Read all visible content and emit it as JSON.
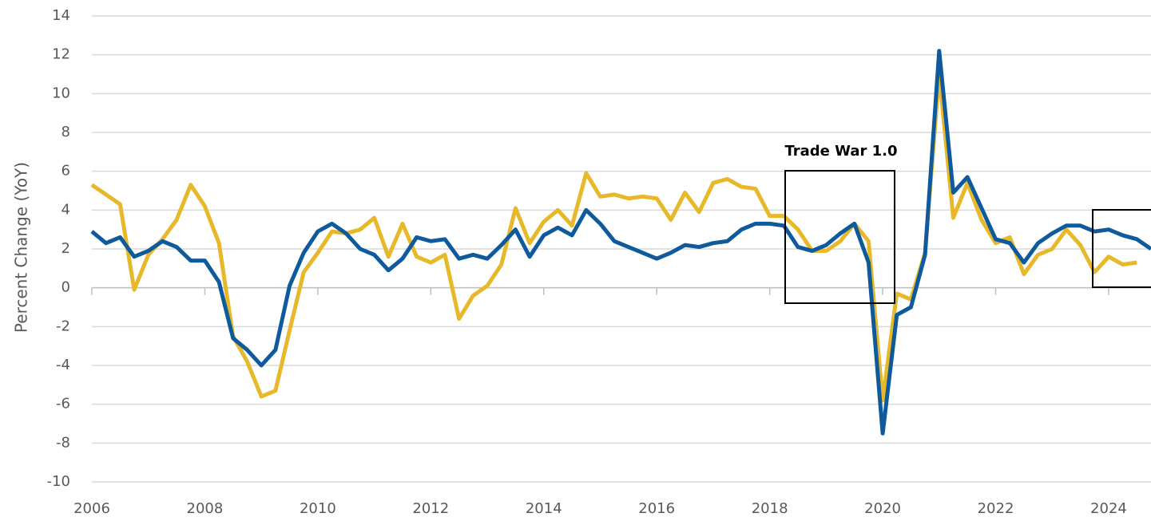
{
  "chart_data": {
    "type": "line",
    "ylabel": "Percent Change (YoY)",
    "annotations": [
      "Trade War 1.0"
    ],
    "x": [
      2006,
      2006.25,
      2006.5,
      2006.75,
      2007,
      2007.25,
      2007.5,
      2007.75,
      2008,
      2008.25,
      2008.5,
      2008.75,
      2009,
      2009.25,
      2009.5,
      2009.75,
      2010,
      2010.25,
      2010.5,
      2010.75,
      2011,
      2011.25,
      2011.5,
      2011.75,
      2012,
      2012.25,
      2012.5,
      2012.75,
      2013,
      2013.25,
      2013.5,
      2013.75,
      2014,
      2014.25,
      2014.5,
      2014.75,
      2015,
      2015.25,
      2015.5,
      2015.75,
      2016,
      2016.25,
      2016.5,
      2016.75,
      2017,
      2017.25,
      2017.5,
      2017.75,
      2018,
      2018.25,
      2018.5,
      2018.75,
      2019,
      2019.25,
      2019.5,
      2019.75,
      2020,
      2020.25,
      2020.5,
      2020.75,
      2021,
      2021.25,
      2021.5,
      2021.75,
      2022,
      2022.25,
      2022.5,
      2022.75,
      2023,
      2023.25,
      2023.5,
      2023.75,
      2024,
      2024.25,
      2024.5,
      2024.75
    ],
    "series": [
      {
        "color": "#e6b82a",
        "values": [
          5.3,
          4.8,
          4.3,
          -0.1,
          1.7,
          2.5,
          3.5,
          5.3,
          4.2,
          2.3,
          -2.5,
          -3.8,
          -5.6,
          -5.3,
          -2.2,
          0.8,
          1.8,
          2.9,
          2.8,
          3.0,
          3.6,
          1.6,
          3.3,
          1.6,
          1.3,
          1.7,
          -1.6,
          -0.4,
          0.1,
          1.2,
          4.1,
          2.3,
          3.4,
          4.0,
          3.2,
          5.9,
          4.7,
          4.8,
          4.6,
          4.7,
          4.6,
          3.5,
          4.9,
          3.9,
          5.4,
          5.6,
          5.2,
          5.1,
          3.7,
          3.7,
          3.0,
          1.9,
          1.9,
          2.4,
          3.3,
          2.4,
          -5.8,
          -0.3,
          -0.6,
          1.8,
          11.0,
          3.6,
          5.4,
          3.5,
          2.3,
          2.6,
          0.7,
          1.7,
          2.0,
          3.0,
          2.2,
          0.8,
          1.6,
          1.2,
          1.3,
          null
        ]
      },
      {
        "color": "#0f5a9c",
        "values": [
          2.9,
          2.3,
          2.6,
          1.6,
          1.9,
          2.4,
          2.1,
          1.4,
          1.4,
          0.3,
          -2.6,
          -3.2,
          -4.0,
          -3.2,
          0.1,
          1.8,
          2.9,
          3.3,
          2.8,
          2.0,
          1.7,
          0.9,
          1.5,
          2.6,
          2.4,
          2.5,
          1.5,
          1.7,
          1.5,
          2.2,
          3.0,
          1.6,
          2.7,
          3.1,
          2.7,
          4.0,
          3.3,
          2.4,
          2.1,
          1.8,
          1.5,
          1.8,
          2.2,
          2.1,
          2.3,
          2.4,
          3.0,
          3.3,
          3.3,
          3.2,
          2.1,
          1.9,
          2.2,
          2.8,
          3.3,
          1.3,
          -7.5,
          -1.4,
          -1.0,
          1.7,
          12.2,
          4.9,
          5.7,
          4.1,
          2.5,
          2.3,
          1.3,
          2.3,
          2.8,
          3.2,
          3.2,
          2.9,
          3.0,
          2.7,
          2.5,
          2.0
        ]
      }
    ],
    "xlim": [
      2006,
      2024.75
    ],
    "xticks": [
      2006,
      2008,
      2010,
      2012,
      2014,
      2016,
      2018,
      2020,
      2022,
      2024
    ],
    "ylim": [
      -10,
      14
    ],
    "yticks": [
      -10,
      -8,
      -6,
      -4,
      -2,
      0,
      2,
      4,
      6,
      8,
      10,
      12,
      14
    ],
    "grid": true
  }
}
